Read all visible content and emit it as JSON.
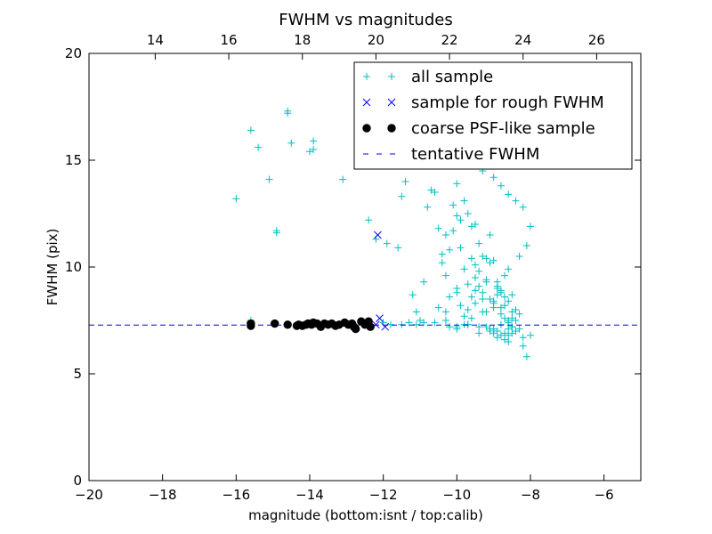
{
  "chart_data": {
    "type": "scatter",
    "title": "FWHM vs magnitudes",
    "xlabel": "magnitude (bottom:isnt / top:calib)",
    "ylabel": "FWHM (pix)",
    "xlim": [
      -20,
      -5
    ],
    "ylim": [
      0,
      20
    ],
    "xticks": [
      "−20",
      "−18",
      "−16",
      "−14",
      "−12",
      "−10",
      "−8",
      "−6"
    ],
    "xtick_values": [
      -20,
      -18,
      -16,
      -14,
      -12,
      -10,
      -8,
      -6
    ],
    "yticks": [
      "0",
      "5",
      "10",
      "15",
      "20"
    ],
    "ytick_values": [
      0,
      5,
      10,
      15,
      20
    ],
    "top_xlim": [
      12.2,
      27.2
    ],
    "top_xticks": [
      "14",
      "16",
      "18",
      "20",
      "22",
      "24",
      "26"
    ],
    "top_xtick_values": [
      14,
      16,
      18,
      20,
      22,
      24,
      26
    ],
    "grid": false,
    "legend_position": "top-right",
    "colors": {
      "all_sample": "#00bfbf",
      "rough_sample": "#0000ff",
      "psf_sample": "#000000",
      "tentative": "#0000ff"
    },
    "series": [
      {
        "name": "all sample",
        "marker": "plus",
        "x": [
          -16.0,
          -15.6,
          -15.4,
          -15.1,
          -14.9,
          -14.9,
          -14.6,
          -14.6,
          -14.5,
          -14.0,
          -13.9,
          -13.9,
          -13.1,
          -12.4,
          -12.2,
          -11.9,
          -11.6,
          -11.5,
          -11.4,
          -11.2,
          -11.1,
          -11.0,
          -10.9,
          -10.8,
          -10.7,
          -10.6,
          -10.5,
          -10.4,
          -10.3,
          -10.2,
          -10.1,
          -10.0,
          -9.9,
          -9.8,
          -9.7,
          -9.6,
          -9.5,
          -9.4,
          -9.3,
          -9.2,
          -9.1,
          -9.0,
          -8.9,
          -8.8,
          -8.7,
          -8.6,
          -8.5,
          -8.4,
          -8.3,
          -8.2,
          -8.1,
          -10.4,
          -10.3,
          -10.1,
          -10.0,
          -9.9,
          -9.8,
          -9.7,
          -9.6,
          -9.5,
          -9.4,
          -9.3,
          -9.2,
          -9.1,
          -9.0,
          -8.9,
          -8.8,
          -8.7,
          -8.6,
          -8.5,
          -10.5,
          -10.3,
          -10.2,
          -10.0,
          -9.9,
          -9.7,
          -9.5,
          -9.4,
          -9.2,
          -9.1,
          -9.0,
          -8.9,
          -8.8,
          -8.7,
          -8.6,
          -8.5,
          -8.4,
          -10.0,
          -9.8,
          -9.6,
          -9.5,
          -9.3,
          -9.2,
          -9.0,
          -8.9,
          -8.8,
          -8.7,
          -8.6,
          -8.5,
          -8.4,
          -8.3,
          -9.8,
          -9.6,
          -9.5,
          -9.3,
          -9.1,
          -9.0,
          -8.9,
          -8.8,
          -8.7,
          -8.6,
          -8.5,
          -10.2,
          -10.0,
          -9.7,
          -9.4,
          -9.2,
          -9.0,
          -8.9,
          -8.7,
          -8.6,
          -15.6,
          -14.0,
          -13.5,
          -13.0,
          -12.6,
          -12.0,
          -11.8,
          -11.5,
          -11.3,
          -11.1,
          -10.9,
          -10.6,
          -10.3,
          -10.0,
          -9.7,
          -9.4,
          -9.1,
          -8.8,
          -8.5,
          -8.2,
          -8.0,
          -9.6,
          -9.3,
          -9.0,
          -8.8,
          -8.6,
          -8.4,
          -8.2,
          -8.0,
          -8.1,
          -8.3,
          -8.6
        ],
        "y": [
          13.2,
          16.4,
          15.6,
          14.1,
          11.6,
          11.7,
          17.3,
          17.2,
          15.8,
          15.4,
          15.5,
          15.9,
          14.1,
          12.2,
          11.3,
          11.1,
          10.9,
          13.3,
          14.0,
          8.7,
          7.9,
          7.5,
          9.3,
          12.8,
          13.6,
          13.5,
          11.8,
          10.2,
          9.6,
          10.8,
          12.9,
          13.9,
          12.2,
          13.1,
          12.5,
          11.9,
          12.0,
          11.1,
          10.5,
          10.4,
          11.5,
          10.3,
          9.0,
          8.8,
          9.6,
          8.4,
          8.7,
          8.0,
          7.8,
          6.3,
          5.8,
          10.6,
          11.5,
          11.7,
          12.4,
          10.9,
          9.9,
          9.2,
          10.4,
          10.1,
          9.8,
          8.8,
          9.3,
          8.5,
          8.1,
          9.1,
          8.9,
          8.2,
          7.5,
          7.9,
          8.1,
          7.9,
          8.6,
          8.8,
          8.2,
          8.0,
          9.5,
          9.1,
          9.4,
          10.2,
          8.3,
          8.7,
          7.8,
          7.6,
          7.4,
          7.6,
          7.5,
          9.0,
          7.7,
          8.6,
          8.3,
          7.9,
          7.9,
          8.4,
          9.3,
          8.1,
          8.6,
          7.1,
          7.2,
          7.0,
          7.1,
          7.3,
          7.6,
          8.9,
          8.5,
          7.0,
          6.9,
          7.0,
          6.8,
          6.6,
          6.8,
          6.9,
          7.2,
          7.1,
          7.3,
          6.9,
          7.2,
          7.1,
          6.7,
          6.9,
          6.5,
          7.5,
          7.4,
          7.3,
          7.3,
          7.4,
          7.4,
          7.3,
          7.3,
          7.4,
          7.3,
          7.4,
          7.4,
          7.5,
          7.2,
          7.3,
          7.2,
          7.1,
          7.3,
          7.2,
          6.7,
          6.8,
          14.8,
          14.5,
          14.2,
          13.8,
          13.4,
          13.1,
          12.8,
          11.9,
          11.0,
          10.5,
          9.9
        ]
      },
      {
        "name": "sample for rough FWHM",
        "marker": "x",
        "x": [
          -12.15,
          -12.1,
          -12.2,
          -11.95,
          -12.4
        ],
        "y": [
          11.5,
          7.6,
          7.3,
          7.2,
          7.3
        ]
      },
      {
        "name": "coarse PSF-like sample",
        "marker": "circle",
        "x": [
          -15.6,
          -15.6,
          -14.95,
          -14.6,
          -14.3,
          -14.2,
          -14.1,
          -14.05,
          -13.9,
          -13.8,
          -13.7,
          -13.5,
          -13.4,
          -13.3,
          -13.2,
          -13.05,
          -12.95,
          -12.85,
          -12.8,
          -12.75,
          -12.6,
          -12.5,
          -12.4,
          -12.35,
          -14.35,
          -13.95,
          -13.6
        ],
        "y": [
          7.35,
          7.25,
          7.35,
          7.3,
          7.3,
          7.25,
          7.3,
          7.35,
          7.4,
          7.35,
          7.2,
          7.3,
          7.35,
          7.25,
          7.3,
          7.4,
          7.3,
          7.35,
          7.2,
          7.1,
          7.45,
          7.3,
          7.45,
          7.2,
          7.25,
          7.3,
          7.35
        ]
      },
      {
        "name": "tentative FWHM",
        "marker": "dashed-line",
        "y_value": 7.28
      }
    ]
  }
}
